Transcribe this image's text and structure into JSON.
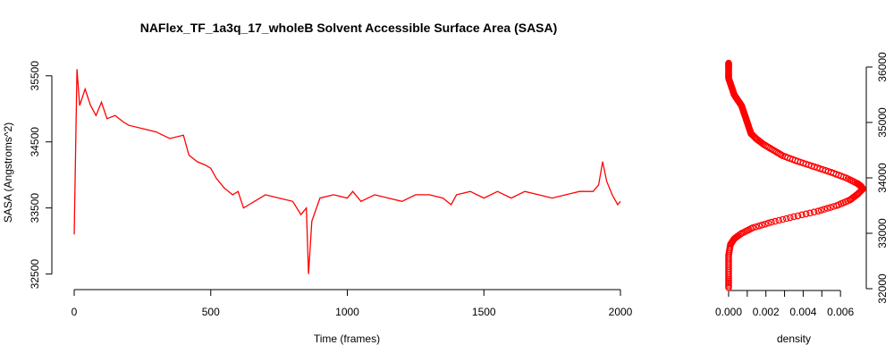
{
  "chart_data": [
    {
      "type": "line",
      "title": "NAFlex_TF_1a3q_17_wholeB Solvent Accessible Surface Area (SASA)",
      "xlabel": "Time (frames)",
      "ylabel": "SASA (Angstroms^2)",
      "xlim": [
        0,
        2000
      ],
      "ylim": [
        32400,
        35700
      ],
      "xticks": [
        0,
        500,
        1000,
        1500,
        2000
      ],
      "yticks": [
        32500,
        33500,
        34500,
        35500
      ],
      "color": "#ff0000",
      "series": [
        {
          "x": [
            0,
            10,
            20,
            40,
            60,
            80,
            100,
            120,
            150,
            180,
            200,
            250,
            300,
            350,
            400,
            420,
            450,
            480,
            500,
            520,
            550,
            580,
            600,
            620,
            640,
            660,
            700,
            750,
            800,
            830,
            850,
            858,
            870,
            900,
            950,
            1000,
            1020,
            1050,
            1100,
            1150,
            1200,
            1250,
            1300,
            1350,
            1380,
            1400,
            1450,
            1500,
            1550,
            1600,
            1650,
            1700,
            1750,
            1800,
            1850,
            1900,
            1920,
            1935,
            1950,
            1970,
            1990,
            2000
          ],
          "y": [
            33100,
            35600,
            35050,
            35300,
            35050,
            34900,
            35100,
            34850,
            34900,
            34800,
            34750,
            34700,
            34650,
            34550,
            34600,
            34300,
            34200,
            34150,
            34100,
            33950,
            33800,
            33700,
            33750,
            33500,
            33550,
            33600,
            33700,
            33650,
            33600,
            33400,
            33500,
            32500,
            33300,
            33650,
            33700,
            33650,
            33750,
            33600,
            33700,
            33650,
            33600,
            33700,
            33700,
            33650,
            33550,
            33700,
            33750,
            33650,
            33750,
            33650,
            33750,
            33700,
            33650,
            33700,
            33750,
            33750,
            33850,
            34200,
            33900,
            33700,
            33550,
            33600
          ]
        }
      ]
    },
    {
      "type": "scatter",
      "xlabel": "density",
      "ylabel": "",
      "xlim": [
        0,
        0.007
      ],
      "ylim": [
        32000,
        36000
      ],
      "xticks": [
        "0.000",
        "0.002",
        "0.004",
        "0.006"
      ],
      "yticks": [
        32000,
        33000,
        34000,
        35000,
        36000
      ],
      "color": "#ff0000",
      "series": [
        {
          "y": [
            32020,
            32200,
            32400,
            32600,
            32800,
            32900,
            33000,
            33100,
            33200,
            33300,
            33400,
            33500,
            33600,
            33700,
            33800,
            33850,
            33900,
            34000,
            34100,
            34200,
            34300,
            34400,
            34500,
            34600,
            34700,
            34800,
            34900,
            35000,
            35100,
            35200,
            35300,
            35400,
            35500,
            35600,
            35700,
            35800,
            35900,
            36000,
            36070
          ],
          "x": [
            0.0,
            0.0,
            0.0,
            0.0,
            0.0001,
            0.0003,
            0.0007,
            0.0013,
            0.0023,
            0.0035,
            0.0048,
            0.0058,
            0.0065,
            0.0069,
            0.0072,
            0.0071,
            0.0069,
            0.0063,
            0.0055,
            0.0046,
            0.0037,
            0.0029,
            0.0024,
            0.0019,
            0.0015,
            0.0012,
            0.0011,
            0.001,
            0.0009,
            0.0008,
            0.0007,
            0.0005,
            0.0003,
            0.0002,
            0.0001,
            0.0,
            0.0,
            0.0,
            0.0
          ]
        }
      ]
    }
  ]
}
